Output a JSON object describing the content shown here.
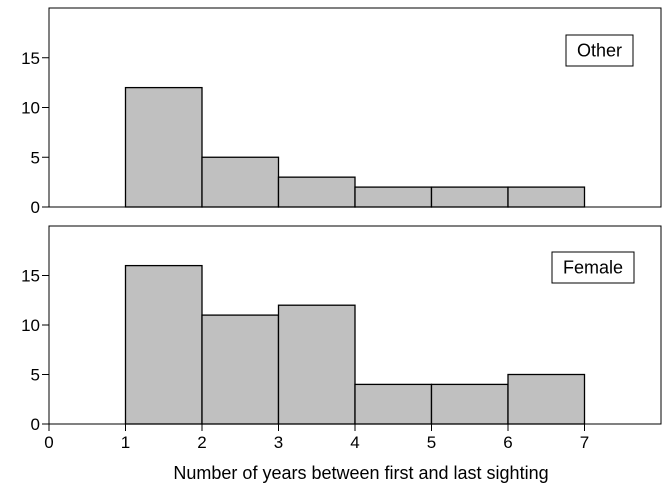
{
  "chart_data": {
    "type": "bar",
    "subtype": "histogram",
    "xlabel": "Number of years between first and last sighting",
    "xlim": [
      0,
      8
    ],
    "xticks": [
      0,
      1,
      2,
      3,
      4,
      5,
      6,
      7
    ],
    "bar_color": "#c0c0c0",
    "panels": [
      {
        "label": "Other",
        "ylim": [
          0,
          20
        ],
        "yticks": [
          0,
          5,
          10,
          15
        ],
        "bins": [
          [
            1,
            2
          ],
          [
            2,
            3
          ],
          [
            3,
            4
          ],
          [
            4,
            5
          ],
          [
            5,
            6
          ],
          [
            6,
            7
          ]
        ],
        "values": [
          12,
          5,
          3,
          2,
          2,
          2
        ]
      },
      {
        "label": "Female",
        "ylim": [
          0,
          20
        ],
        "yticks": [
          0,
          5,
          10,
          15
        ],
        "bins": [
          [
            1,
            2
          ],
          [
            2,
            3
          ],
          [
            3,
            4
          ],
          [
            4,
            5
          ],
          [
            5,
            6
          ],
          [
            6,
            7
          ]
        ],
        "values": [
          16,
          11,
          12,
          4,
          4,
          5
        ]
      }
    ]
  }
}
